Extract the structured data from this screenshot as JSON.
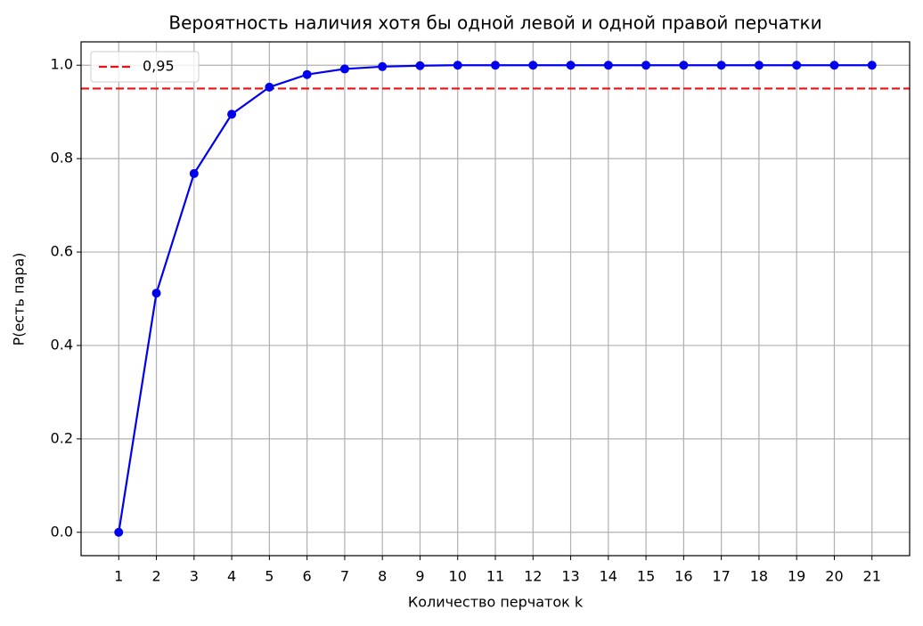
{
  "chart_data": {
    "type": "line",
    "title": "Вероятность наличия хотя бы одной левой и одной правой перчатки",
    "x_label": "Количество перчаток k",
    "y_label": "P(есть пара)",
    "x": [
      1,
      2,
      3,
      4,
      5,
      6,
      7,
      8,
      9,
      10,
      11,
      12,
      13,
      14,
      15,
      16,
      17,
      18,
      19,
      20,
      21
    ],
    "values": [
      0,
      0.512,
      0.768,
      0.895,
      0.953,
      0.98,
      0.992,
      0.997,
      0.999,
      1.0,
      1.0,
      1.0,
      1.0,
      1.0,
      1.0,
      1.0,
      1.0,
      1.0,
      1.0,
      1.0,
      1.0
    ],
    "color": "#0000ee",
    "marker": "circle",
    "hline": {
      "value": 0.95,
      "label": "0,95",
      "color": "#ee1111",
      "dashed": true
    },
    "legend": "upper-left",
    "xlim": [
      0,
      22
    ],
    "ylim": [
      -0.05,
      1.05
    ],
    "xticks": [
      1,
      2,
      3,
      4,
      5,
      6,
      7,
      8,
      9,
      10,
      11,
      12,
      13,
      14,
      15,
      16,
      17,
      18,
      19,
      20,
      21
    ],
    "yticks": [
      {
        "value": 0,
        "label": "0.0"
      },
      {
        "value": 0.2,
        "label": "0.2"
      },
      {
        "value": 0.4,
        "label": "0.4"
      },
      {
        "value": 0.6,
        "label": "0.6"
      },
      {
        "value": 0.8,
        "label": "0.8"
      },
      {
        "value": 1.0,
        "label": "1.0"
      }
    ],
    "grid": true
  }
}
